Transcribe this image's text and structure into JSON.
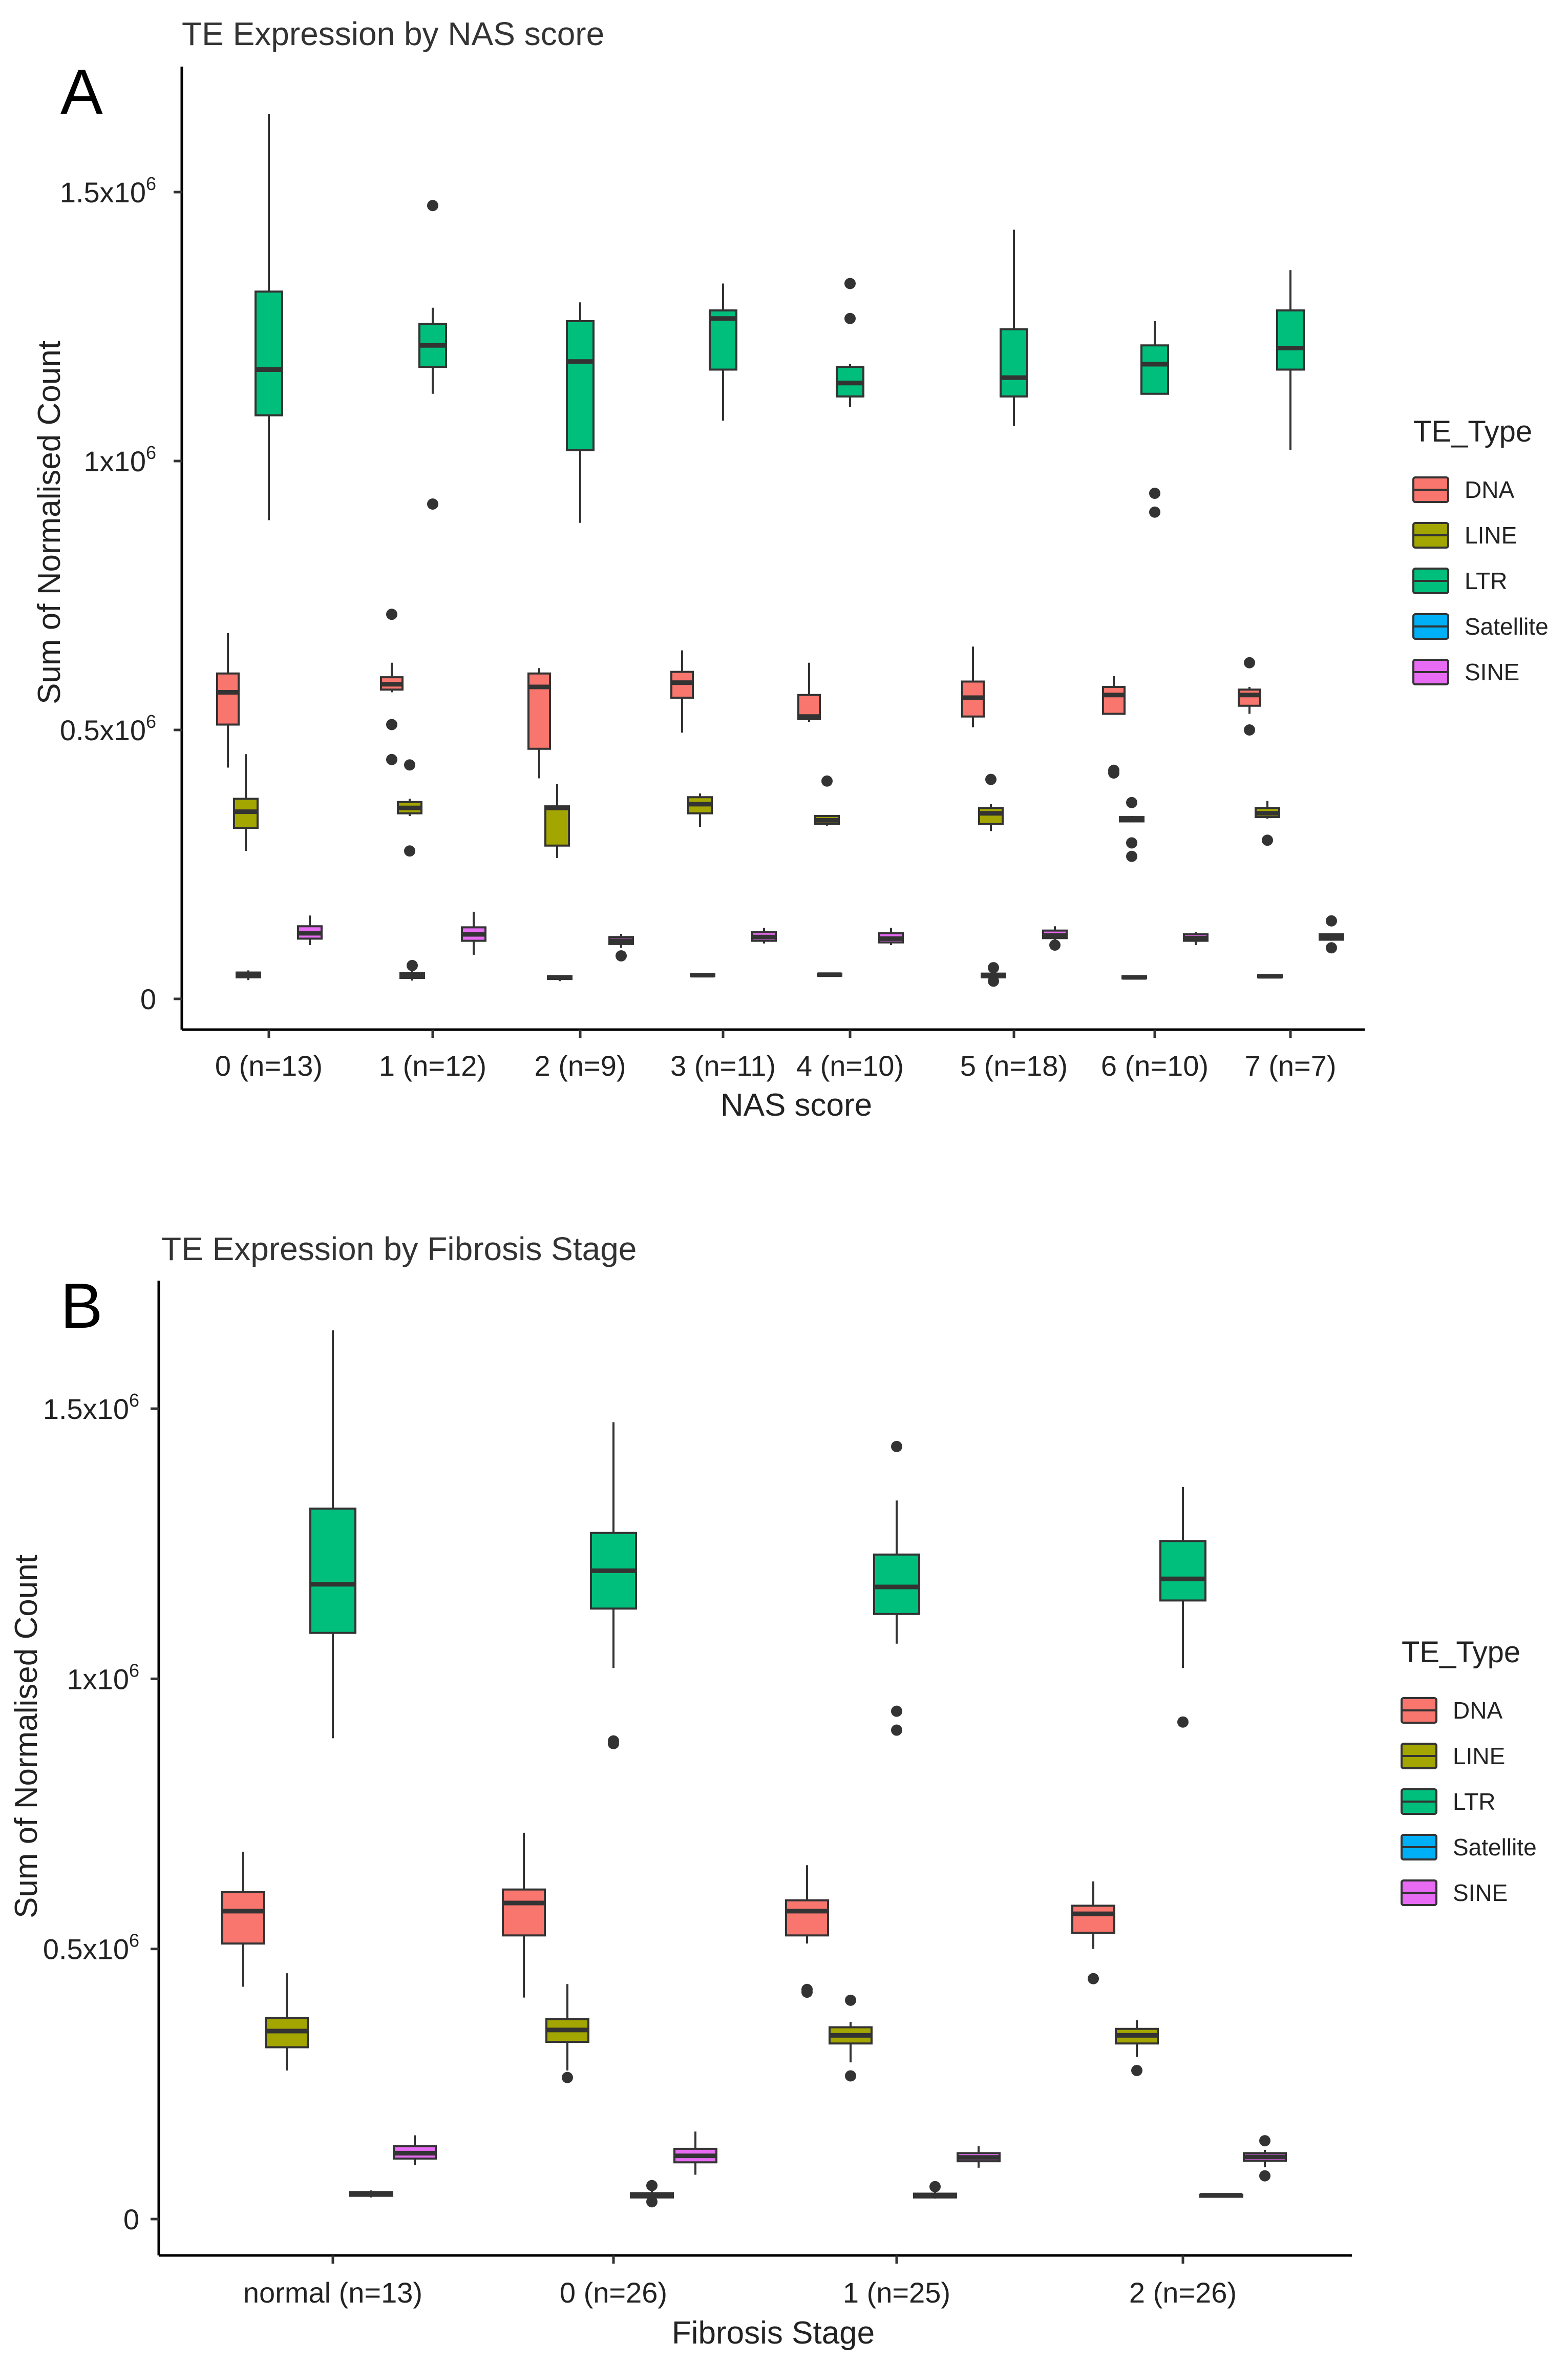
{
  "colors": {
    "DNA": "#F8766D",
    "LINE": "#A3A500",
    "LTR": "#00BF7D",
    "Satellite": "#00B0F6",
    "SINE": "#E76BF3",
    "stroke": "#333333"
  },
  "chart_data": [
    {
      "type": "boxplot",
      "panel_label": "A",
      "title": "TE Expression by NAS score",
      "xlabel": "NAS score",
      "ylabel": "Sum of Normalised Count",
      "ylim": [
        0,
        1650000
      ],
      "yticks": [
        {
          "value": 0,
          "base": "0",
          "exp": ""
        },
        {
          "value": 500000,
          "base": "0.5x10",
          "exp": "6"
        },
        {
          "value": 1000000,
          "base": "1x10",
          "exp": "6"
        },
        {
          "value": 1500000,
          "base": "1.5x10",
          "exp": "6"
        }
      ],
      "legend_title": "TE_Type",
      "legend_items": [
        "DNA",
        "LINE",
        "LTR",
        "Satellite",
        "SINE"
      ],
      "series_order": [
        "Satellite",
        "LTR",
        "DNA",
        "LINE",
        "SINE"
      ],
      "categories": [
        "0 (n=13)",
        "1 (n=12)",
        "2 (n=9)",
        "3 (n=11)",
        "4 (n=10)",
        "5 (n=18)",
        "6 (n=10)",
        "7 (n=7)"
      ],
      "groups": [
        {
          "LTR": {
            "min": 890000,
            "q1": 1085000,
            "median": 1170000,
            "q3": 1315000,
            "max": 1645000,
            "outliers": []
          },
          "DNA": {
            "min": 430000,
            "q1": 510000,
            "median": 570000,
            "q3": 605000,
            "max": 680000,
            "outliers": []
          },
          "LINE": {
            "min": 275000,
            "q1": 318000,
            "median": 348000,
            "q3": 372000,
            "max": 455000,
            "outliers": []
          },
          "Satellite": {
            "min": 35000,
            "q1": 40000,
            "median": 45000,
            "q3": 49000,
            "max": 53000,
            "outliers": []
          },
          "SINE": {
            "min": 100000,
            "q1": 112000,
            "median": 122000,
            "q3": 135000,
            "max": 155000,
            "outliers": []
          }
        },
        {
          "LTR": {
            "min": 1125000,
            "q1": 1175000,
            "median": 1215000,
            "q3": 1255000,
            "max": 1285000,
            "outliers": [
              1475000,
              920000
            ]
          },
          "DNA": {
            "min": 570000,
            "q1": 575000,
            "median": 585000,
            "q3": 598000,
            "max": 625000,
            "outliers": [
              715000,
              510000,
              445000
            ]
          },
          "LINE": {
            "min": 340000,
            "q1": 345000,
            "median": 355000,
            "q3": 366000,
            "max": 372000,
            "outliers": [
              435000,
              275000
            ]
          },
          "Satellite": {
            "min": 34000,
            "q1": 39000,
            "median": 43000,
            "q3": 48000,
            "max": 54000,
            "outliers": [
              62000
            ]
          },
          "SINE": {
            "min": 82000,
            "q1": 108000,
            "median": 120000,
            "q3": 133000,
            "max": 162000,
            "outliers": []
          }
        },
        {
          "LTR": {
            "min": 885000,
            "q1": 1020000,
            "median": 1185000,
            "q3": 1260000,
            "max": 1295000,
            "outliers": []
          },
          "DNA": {
            "min": 410000,
            "q1": 465000,
            "median": 580000,
            "q3": 605000,
            "max": 615000,
            "outliers": []
          },
          "LINE": {
            "min": 262000,
            "q1": 285000,
            "median": 355000,
            "q3": 358000,
            "max": 400000,
            "outliers": []
          },
          "Satellite": {
            "min": 33000,
            "q1": 37000,
            "median": 40000,
            "q3": 42000,
            "max": 44000,
            "outliers": []
          },
          "SINE": {
            "min": 95000,
            "q1": 102000,
            "median": 108000,
            "q3": 115000,
            "max": 121000,
            "outliers": [
              80000
            ]
          }
        },
        {
          "LTR": {
            "min": 1075000,
            "q1": 1170000,
            "median": 1265000,
            "q3": 1280000,
            "max": 1330000,
            "outliers": []
          },
          "DNA": {
            "min": 495000,
            "q1": 560000,
            "median": 588000,
            "q3": 608000,
            "max": 648000,
            "outliers": []
          },
          "LINE": {
            "min": 320000,
            "q1": 345000,
            "median": 362000,
            "q3": 375000,
            "max": 382000,
            "outliers": []
          },
          "Satellite": {
            "min": 40000,
            "q1": 42000,
            "median": 44000,
            "q3": 46000,
            "max": 47000,
            "outliers": []
          },
          "SINE": {
            "min": 103000,
            "q1": 108000,
            "median": 115000,
            "q3": 124000,
            "max": 132000,
            "outliers": []
          }
        },
        {
          "LTR": {
            "min": 1100000,
            "q1": 1120000,
            "median": 1145000,
            "q3": 1175000,
            "max": 1180000,
            "outliers": [
              1330000,
              1265000
            ]
          },
          "DNA": {
            "min": 515000,
            "q1": 520000,
            "median": 525000,
            "q3": 565000,
            "max": 625000,
            "outliers": []
          },
          "LINE": {
            "min": 322000,
            "q1": 325000,
            "median": 332000,
            "q3": 340000,
            "max": 342000,
            "outliers": [
              405000
            ]
          },
          "Satellite": {
            "min": 41000,
            "q1": 43000,
            "median": 45000,
            "q3": 47000,
            "max": 49000,
            "outliers": []
          },
          "SINE": {
            "min": 100000,
            "q1": 105000,
            "median": 112000,
            "q3": 122000,
            "max": 132000,
            "outliers": []
          }
        },
        {
          "LTR": {
            "min": 1065000,
            "q1": 1120000,
            "median": 1155000,
            "q3": 1245000,
            "max": 1430000,
            "outliers": []
          },
          "DNA": {
            "min": 505000,
            "q1": 525000,
            "median": 560000,
            "q3": 590000,
            "max": 655000,
            "outliers": []
          },
          "LINE": {
            "min": 312000,
            "q1": 325000,
            "median": 345000,
            "q3": 355000,
            "max": 362000,
            "outliers": [
              408000
            ]
          },
          "Satellite": {
            "min": 38000,
            "q1": 40000,
            "median": 43000,
            "q3": 47000,
            "max": 50000,
            "outliers": [
              58000,
              33000
            ]
          },
          "SINE": {
            "min": 110000,
            "q1": 113000,
            "median": 118000,
            "q3": 127000,
            "max": 135000,
            "outliers": [
              100000
            ]
          }
        },
        {
          "LTR": {
            "min": 1125000,
            "q1": 1125000,
            "median": 1180000,
            "q3": 1215000,
            "max": 1260000,
            "outliers": [
              940000,
              905000
            ]
          },
          "DNA": {
            "min": 530000,
            "q1": 530000,
            "median": 565000,
            "q3": 580000,
            "max": 600000,
            "outliers": [
              425000,
              420000
            ]
          },
          "LINE": {
            "min": 330000,
            "q1": 330000,
            "median": 335000,
            "q3": 338000,
            "max": 340000,
            "outliers": [
              365000,
              290000,
              265000
            ]
          },
          "Satellite": {
            "min": 36000,
            "q1": 38000,
            "median": 40000,
            "q3": 42000,
            "max": 44000,
            "outliers": []
          },
          "SINE": {
            "min": 100000,
            "q1": 108000,
            "median": 113000,
            "q3": 120000,
            "max": 124000,
            "outliers": []
          }
        },
        {
          "LTR": {
            "min": 1020000,
            "q1": 1170000,
            "median": 1210000,
            "q3": 1280000,
            "max": 1355000,
            "outliers": []
          },
          "DNA": {
            "min": 530000,
            "q1": 545000,
            "median": 565000,
            "q3": 575000,
            "max": 580000,
            "outliers": [
              625000,
              500000
            ]
          },
          "LINE": {
            "min": 335000,
            "q1": 338000,
            "median": 345000,
            "q3": 355000,
            "max": 368000,
            "outliers": [
              295000
            ]
          },
          "Satellite": {
            "min": 38000,
            "q1": 40000,
            "median": 42000,
            "q3": 44000,
            "max": 46000,
            "outliers": []
          },
          "SINE": {
            "min": 108000,
            "q1": 110000,
            "median": 115000,
            "q3": 120000,
            "max": 122000,
            "outliers": [
              145000,
              95000
            ]
          }
        }
      ]
    },
    {
      "type": "boxplot",
      "panel_label": "B",
      "title": "TE Expression by Fibrosis Stage",
      "xlabel": "Fibrosis Stage",
      "ylabel": "Sum of Normalised Count",
      "ylim": [
        0,
        1650000
      ],
      "yticks": [
        {
          "value": 0,
          "base": "0",
          "exp": ""
        },
        {
          "value": 500000,
          "base": "0.5x10",
          "exp": "6"
        },
        {
          "value": 1000000,
          "base": "1x10",
          "exp": "6"
        },
        {
          "value": 1500000,
          "base": "1.5x10",
          "exp": "6"
        }
      ],
      "legend_title": "TE_Type",
      "legend_items": [
        "DNA",
        "LINE",
        "LTR",
        "Satellite",
        "SINE"
      ],
      "series_order": [
        "DNA",
        "LINE",
        "Satellite",
        "SINE",
        "LTR"
      ],
      "categories": [
        "normal (n=13)",
        "0 (n=26)",
        "1 (n=25)",
        "2 (n=26)"
      ],
      "groups": [
        {
          "LTR": {
            "min": 890000,
            "q1": 1085000,
            "median": 1175000,
            "q3": 1315000,
            "max": 1645000,
            "outliers": []
          },
          "DNA": {
            "min": 430000,
            "q1": 510000,
            "median": 570000,
            "q3": 605000,
            "max": 680000,
            "outliers": []
          },
          "LINE": {
            "min": 275000,
            "q1": 318000,
            "median": 348000,
            "q3": 372000,
            "max": 455000,
            "outliers": []
          },
          "Satellite": {
            "min": 40000,
            "q1": 43000,
            "median": 46000,
            "q3": 50000,
            "max": 53000,
            "outliers": []
          },
          "SINE": {
            "min": 100000,
            "q1": 112000,
            "median": 122000,
            "q3": 135000,
            "max": 155000,
            "outliers": []
          }
        },
        {
          "LTR": {
            "min": 1020000,
            "q1": 1130000,
            "median": 1200000,
            "q3": 1270000,
            "max": 1475000,
            "outliers": [
              885000,
              880000
            ]
          },
          "DNA": {
            "min": 410000,
            "q1": 525000,
            "median": 585000,
            "q3": 610000,
            "max": 715000,
            "outliers": []
          },
          "LINE": {
            "min": 275000,
            "q1": 328000,
            "median": 350000,
            "q3": 370000,
            "max": 435000,
            "outliers": [
              262000
            ]
          },
          "Satellite": {
            "min": 36000,
            "q1": 40000,
            "median": 44000,
            "q3": 48000,
            "max": 52000,
            "outliers": [
              62000,
              32000
            ]
          },
          "SINE": {
            "min": 82000,
            "q1": 105000,
            "median": 117000,
            "q3": 130000,
            "max": 162000,
            "outliers": []
          }
        },
        {
          "LTR": {
            "min": 1065000,
            "q1": 1120000,
            "median": 1170000,
            "q3": 1230000,
            "max": 1330000,
            "outliers": [
              1430000,
              940000,
              905000
            ]
          },
          "DNA": {
            "min": 510000,
            "q1": 525000,
            "median": 570000,
            "q3": 590000,
            "max": 655000,
            "outliers": [
              425000,
              420000
            ]
          },
          "LINE": {
            "min": 290000,
            "q1": 325000,
            "median": 340000,
            "q3": 355000,
            "max": 365000,
            "outliers": [
              405000,
              265000
            ]
          },
          "Satellite": {
            "min": 38000,
            "q1": 40000,
            "median": 43000,
            "q3": 47000,
            "max": 52000,
            "outliers": [
              60000
            ]
          },
          "SINE": {
            "min": 95000,
            "q1": 107000,
            "median": 114000,
            "q3": 122000,
            "max": 135000,
            "outliers": []
          }
        },
        {
          "LTR": {
            "min": 1020000,
            "q1": 1145000,
            "median": 1185000,
            "q3": 1255000,
            "max": 1355000,
            "outliers": [
              920000
            ]
          },
          "DNA": {
            "min": 500000,
            "q1": 530000,
            "median": 565000,
            "q3": 580000,
            "max": 625000,
            "outliers": [
              445000
            ]
          },
          "LINE": {
            "min": 300000,
            "q1": 325000,
            "median": 340000,
            "q3": 352000,
            "max": 368000,
            "outliers": [
              275000
            ]
          },
          "Satellite": {
            "min": 42000,
            "q1": 43000,
            "median": 44000,
            "q3": 45000,
            "max": 46000,
            "outliers": []
          },
          "SINE": {
            "min": 96000,
            "q1": 108000,
            "median": 115000,
            "q3": 122000,
            "max": 128000,
            "outliers": [
              145000,
              80000
            ]
          }
        }
      ]
    }
  ]
}
